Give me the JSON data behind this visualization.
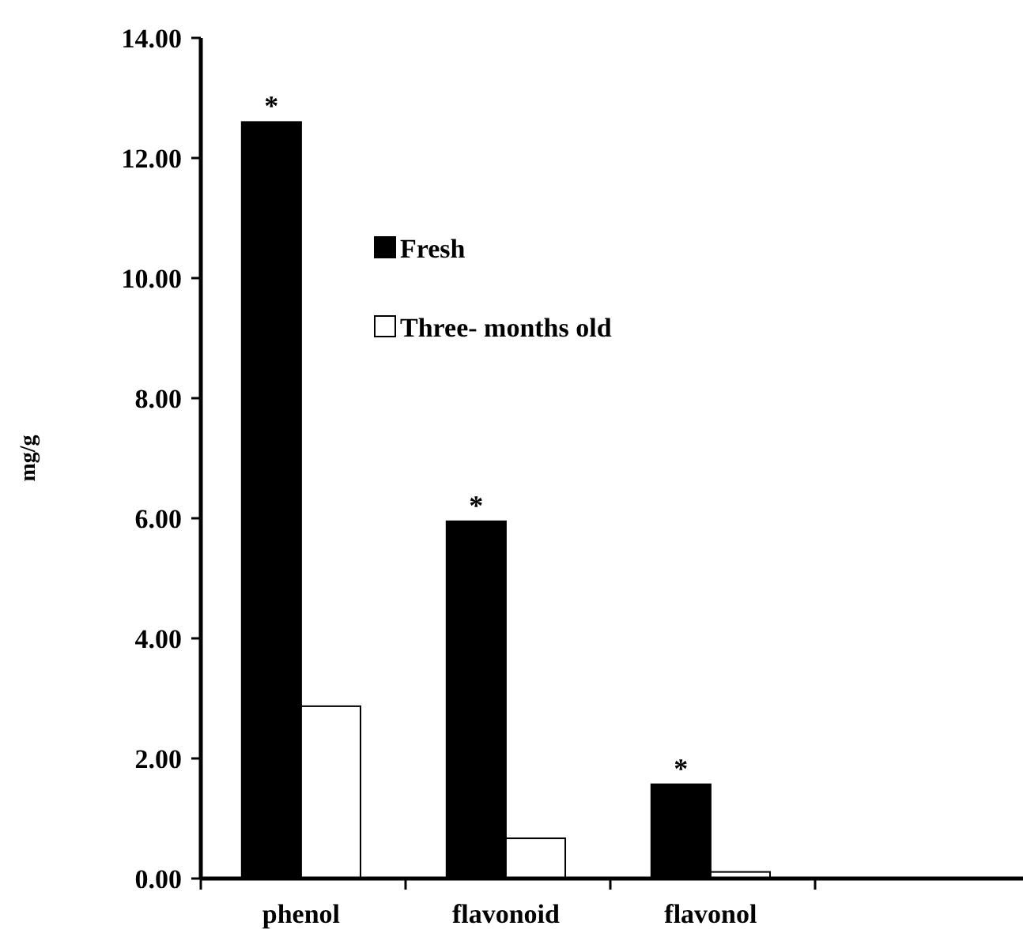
{
  "chart_data": {
    "type": "bar",
    "ylabel": "mg/g",
    "categories": [
      "phenol",
      "flavonoid",
      "flavonol",
      null
    ],
    "series": [
      {
        "name": "Fresh",
        "color": "#000000",
        "values": [
          12.6,
          5.95,
          1.57,
          null
        ]
      },
      {
        "name": "Three- months old",
        "color": "#ffffff",
        "values": [
          2.87,
          0.67,
          0.11,
          null
        ]
      }
    ],
    "ylim": [
      0,
      14
    ],
    "yticks": [
      {
        "value": 0,
        "label": "0.00"
      },
      {
        "value": 2,
        "label": "2.00"
      },
      {
        "value": 4,
        "label": "4.00"
      },
      {
        "value": 6,
        "label": "6.00"
      },
      {
        "value": 8,
        "label": "8.00"
      },
      {
        "value": 10,
        "label": "10.00"
      },
      {
        "value": 12,
        "label": "12.00"
      },
      {
        "value": 14,
        "label": "14.00"
      }
    ],
    "grid": false,
    "legend": "top",
    "annotations": [
      {
        "text": "*",
        "x": "phenol",
        "y": 12.6
      },
      {
        "text": "*",
        "x": "flavonoid",
        "y": 5.95
      },
      {
        "text": "*",
        "x": "flavonol",
        "y": 1.57
      }
    ]
  }
}
